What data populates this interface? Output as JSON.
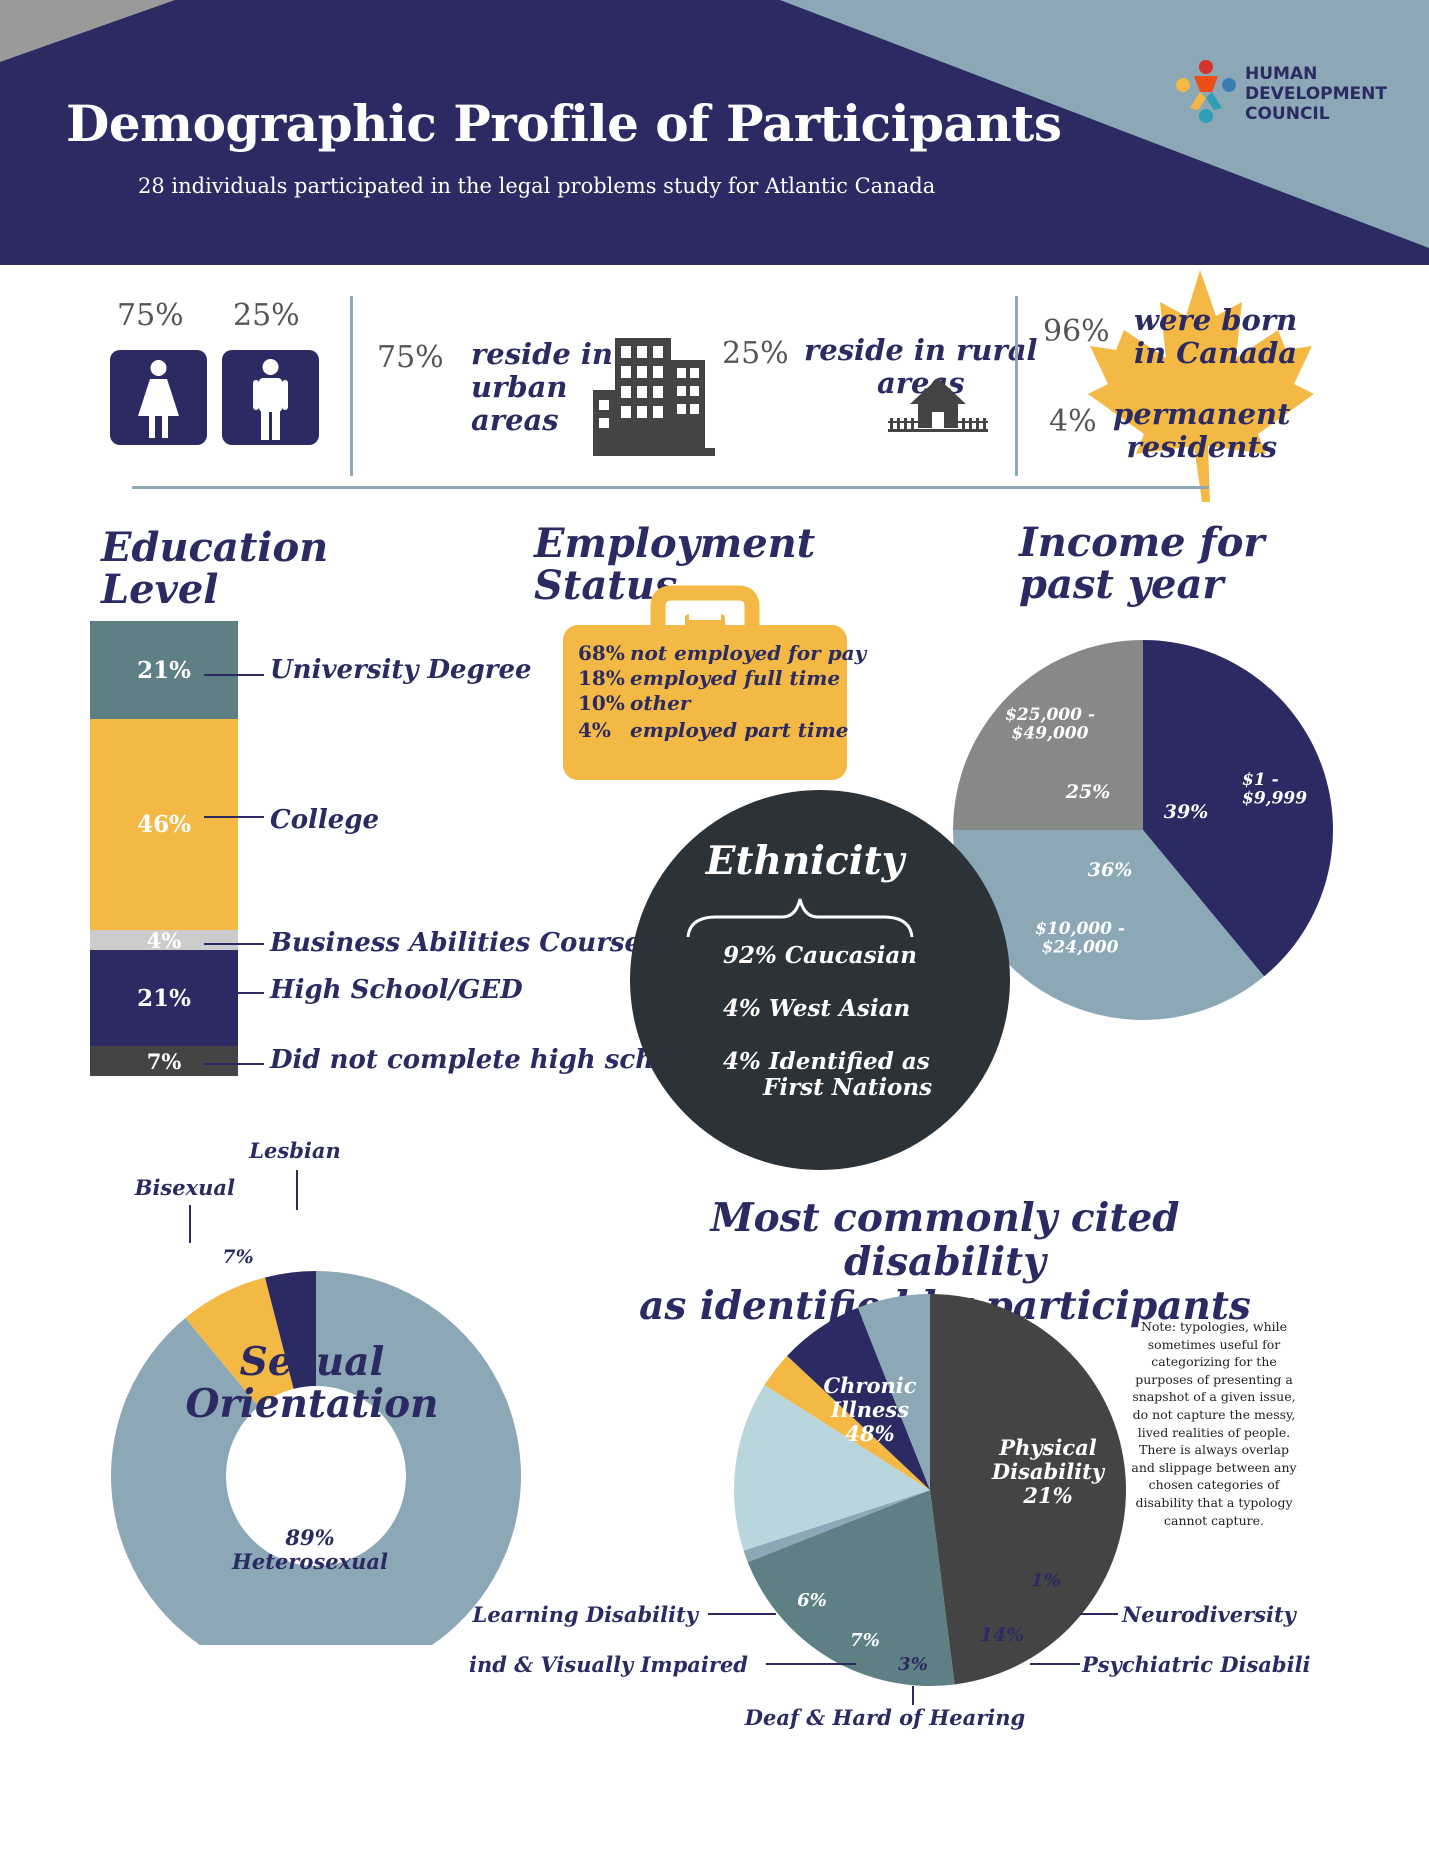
{
  "header": {
    "title": "Demographic Profile of Participants",
    "subtitle": "28 individuals participated in the legal problems study for Atlantic Canada",
    "logo_lines": [
      "HUMAN",
      "DEVELOPMENT",
      "COUNCIL"
    ]
  },
  "colors": {
    "navy": "#2b2a62",
    "steel": "#8ca8b6",
    "teal": "#5e7f83",
    "gold": "#f3b944",
    "charcoal": "#2b3238",
    "dark_gray": "#444444",
    "gray": "#888888",
    "light_gray": "#cccccc",
    "light_blue": "#b9d6dc"
  },
  "gender": {
    "female_pct": "75%",
    "male_pct": "25%",
    "female_icon": "female-person-icon",
    "male_icon": "male-person-icon"
  },
  "residence": {
    "urban_pct": "75%",
    "urban_text": [
      "reside in",
      "urban",
      "areas"
    ],
    "urban_icon": "office-building-icon",
    "rural_pct": "25%",
    "rural_text": [
      "reside in rural",
      "areas"
    ],
    "rural_icon": "house-with-fence-icon"
  },
  "origin": {
    "born_pct": "96%",
    "born_text": [
      "were born",
      "in Canada"
    ],
    "pr_pct": "4%",
    "pr_text": [
      "permanent",
      "residents"
    ],
    "icon": "maple-leaf-icon"
  },
  "education": {
    "title": [
      "Education",
      "Level"
    ],
    "items": [
      {
        "pct": "21%",
        "label": "University Degree"
      },
      {
        "pct": "46%",
        "label": "College"
      },
      {
        "pct": "4%",
        "label": "Business Abilities Course"
      },
      {
        "pct": "21%",
        "label": "High School/GED"
      },
      {
        "pct": "7%",
        "label": "Did not complete high school"
      }
    ]
  },
  "employment": {
    "title": [
      "Employment",
      "Status"
    ],
    "icon": "briefcase-icon",
    "items": [
      {
        "pct": "68%",
        "label": "not employed for pay"
      },
      {
        "pct": "18%",
        "label": "employed full time"
      },
      {
        "pct": "10%",
        "label": "other"
      },
      {
        "pct": "4%",
        "label": "employed part time"
      }
    ]
  },
  "ethnicity": {
    "title": "Ethnicity",
    "items": [
      "92% Caucasian",
      "4% West Asian",
      "4% Identified as",
      "First Nations"
    ]
  },
  "chart_data": [
    {
      "type": "pie",
      "title": "Income for past year",
      "title_lines": [
        "Income for",
        "past year"
      ],
      "slices": [
        {
          "label": "$1 - $9,999",
          "label_lines": [
            "$1 -",
            "$9,999"
          ],
          "value": 39,
          "pct_label": "39%",
          "color": "#2b2a62"
        },
        {
          "label": "$10,000 - $24,000",
          "label_lines": [
            "$10,000 -",
            "$24,000"
          ],
          "value": 36,
          "pct_label": "36%",
          "color": "#8ca8b6"
        },
        {
          "label": "$25,000 - $49,000",
          "label_lines": [
            "$25,000 -",
            "$49,000"
          ],
          "value": 25,
          "pct_label": "25%",
          "color": "#888888"
        }
      ]
    },
    {
      "type": "pie",
      "subtype": "donut",
      "title": "Sexual Orientation",
      "title_lines": [
        "Sexual",
        "Orientation"
      ],
      "slices": [
        {
          "label": "Heterosexual",
          "value": 89,
          "pct_label": "89%",
          "color": "#8ca8b6"
        },
        {
          "label": "Bisexual",
          "value": 7,
          "pct_label": "7%",
          "color": "#f3b944"
        },
        {
          "label": "Lesbian",
          "value": 4,
          "pct_label": "4%",
          "color": "#2b2a62"
        }
      ]
    },
    {
      "type": "pie",
      "title": "Most commonly cited disability as identified by participants",
      "title_lines": [
        "Most commonly cited disability",
        "as identified by participants"
      ],
      "slices": [
        {
          "label": "Chronic Illness",
          "label_lines": [
            "Chronic",
            "Illness"
          ],
          "value": 48,
          "pct_label": "48%",
          "color": "#444444"
        },
        {
          "label": "Physical Disability",
          "label_lines": [
            "Physical",
            "Disability"
          ],
          "value": 21,
          "pct_label": "21%",
          "color": "#5e7f83"
        },
        {
          "label": "Neurodiversity",
          "value": 1,
          "pct_label": "1%",
          "color": "#8ca8b6"
        },
        {
          "label": "Psychiatric Disability",
          "value": 14,
          "pct_label": "14%",
          "color": "#b9d6dc"
        },
        {
          "label": "Deaf & Hard of Hearing",
          "value": 3,
          "pct_label": "3%",
          "color": "#f3b944"
        },
        {
          "label": "Blind & Visually Impaired",
          "value": 7,
          "pct_label": "7%",
          "color": "#2b2a62"
        },
        {
          "label": "Learning Disability",
          "value": 6,
          "pct_label": "6%",
          "color": "#8ca8b6"
        }
      ],
      "note": "Note: typologies, while sometimes useful for categorizing for the purposes of presenting a snapshot of a given issue, do not capture the messy, lived realities of people. There is always overlap and slippage between any chosen categories of disability that a typology cannot capture."
    }
  ]
}
